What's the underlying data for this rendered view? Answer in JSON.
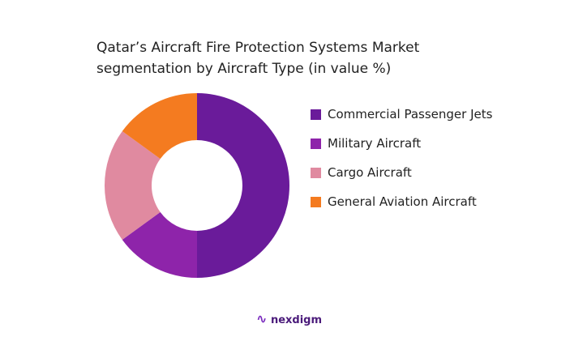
{
  "chart_data": {
    "type": "donut",
    "title": "Qatar’s Aircraft Fire Protection Systems Market segmentation by Aircraft Type (in value %)",
    "categories": [
      "Commercial Passenger Jets",
      "Military Aircraft",
      "Cargo Aircraft",
      "General Aviation Aircraft"
    ],
    "values": [
      50,
      15,
      20,
      15
    ],
    "colors": [
      "#6a1b9a",
      "#8e24aa",
      "#e08aa0",
      "#f47b20"
    ],
    "legend": "right"
  },
  "footer": {
    "brand": "nexdigm"
  }
}
